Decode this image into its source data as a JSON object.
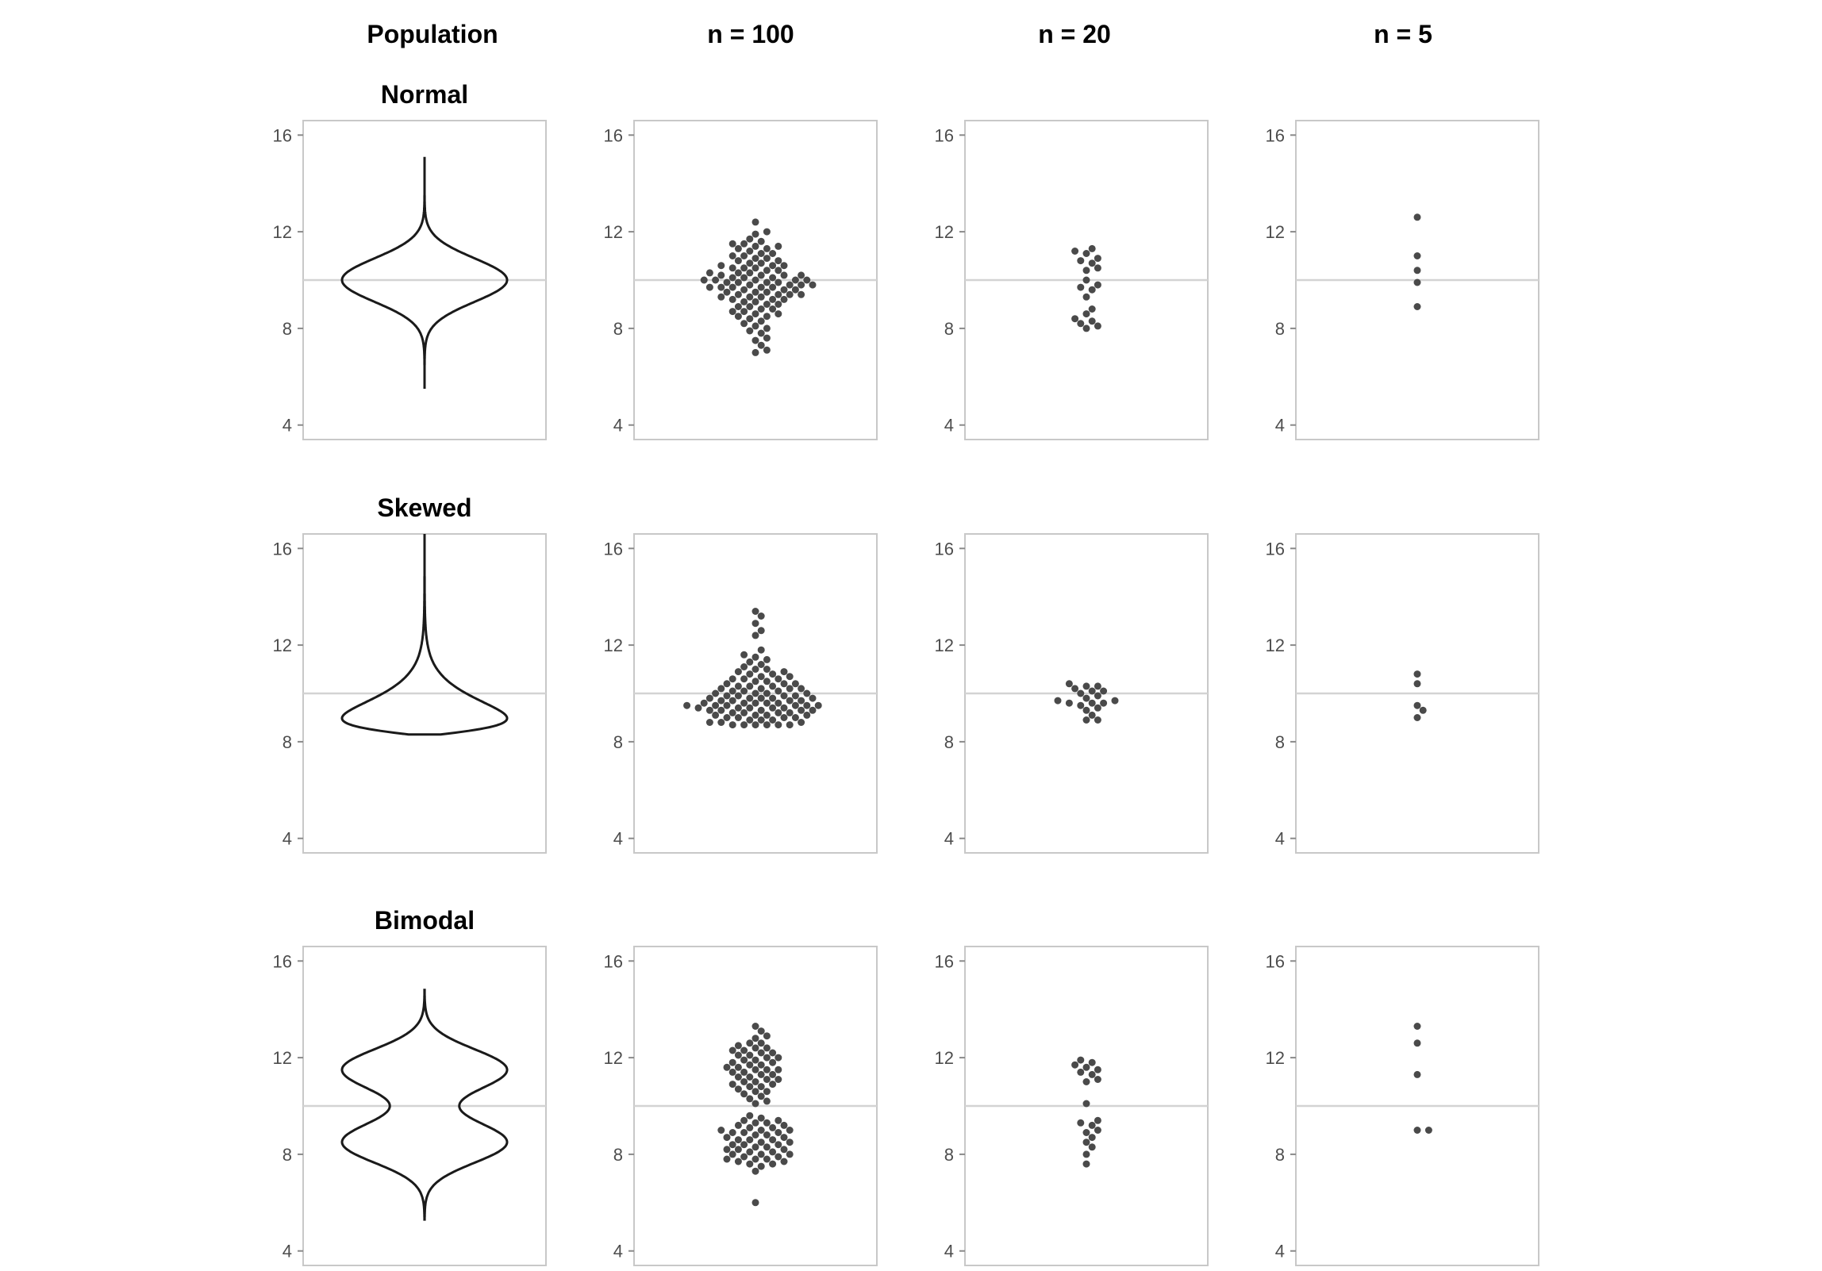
{
  "chart_data": {
    "type": "scatter",
    "column_titles": [
      "Population",
      "n = 100",
      "n = 20",
      "n = 5"
    ],
    "row_titles": [
      "Normal",
      "Skewed",
      "Bimodal"
    ],
    "y_ticks": [
      4,
      8,
      12,
      16
    ],
    "ylim": [
      3.4,
      16.6
    ],
    "reference_line": 10,
    "grid": false,
    "panels": [
      {
        "distribution": "Normal",
        "population": {
          "shape": "violin",
          "mode": "normal",
          "center": 10,
          "sd": 0.9,
          "min": 5.5,
          "max": 15.1
        },
        "samples": {
          "n = 100": [
            12.4,
            12.0,
            11.9,
            11.7,
            11.6,
            11.5,
            11.5,
            11.4,
            11.4,
            11.3,
            11.3,
            11.2,
            11.1,
            11.1,
            11.0,
            11.0,
            10.9,
            10.9,
            10.8,
            10.8,
            10.7,
            10.7,
            10.6,
            10.6,
            10.5,
            10.5,
            10.5,
            10.4,
            10.4,
            10.3,
            10.3,
            10.3,
            10.2,
            10.2,
            10.2,
            10.1,
            10.1,
            10.1,
            10.0,
            10.0,
            10.0,
            10.0,
            9.9,
            9.9,
            9.9,
            9.9,
            9.8,
            9.8,
            9.8,
            9.8,
            9.7,
            9.7,
            9.7,
            9.7,
            9.6,
            9.6,
            9.6,
            9.5,
            9.5,
            9.5,
            9.4,
            9.4,
            9.4,
            9.3,
            9.3,
            9.3,
            9.2,
            9.2,
            9.2,
            9.1,
            9.1,
            9.0,
            9.0,
            8.9,
            8.9,
            8.8,
            8.8,
            8.7,
            8.7,
            8.6,
            8.6,
            8.5,
            8.5,
            8.4,
            8.3,
            8.2,
            8.1,
            8.0,
            7.9,
            7.8,
            7.6,
            7.5,
            7.3,
            7.1,
            7.0,
            10.6,
            9.7,
            10.2,
            9.4,
            10.0
          ],
          "n = 20": [
            11.3,
            11.2,
            11.1,
            10.9,
            10.8,
            10.7,
            10.5,
            10.4,
            10.0,
            9.8,
            9.7,
            9.6,
            9.3,
            8.8,
            8.6,
            8.4,
            8.3,
            8.2,
            8.1,
            8.0
          ],
          "n = 5": [
            12.6,
            11.0,
            10.4,
            9.9,
            8.9
          ]
        }
      },
      {
        "distribution": "Skewed",
        "population": {
          "shape": "violin",
          "mode": "skewed",
          "min": 8.3,
          "max": 16.6
        },
        "samples": {
          "n = 100": [
            13.4,
            13.2,
            12.9,
            12.6,
            12.4,
            11.8,
            11.6,
            11.5,
            11.4,
            11.3,
            11.2,
            11.1,
            11.0,
            10.9,
            10.8,
            10.8,
            10.7,
            10.7,
            10.6,
            10.6,
            10.5,
            10.5,
            10.4,
            10.4,
            10.4,
            10.3,
            10.3,
            10.3,
            10.2,
            10.2,
            10.2,
            10.1,
            10.1,
            10.1,
            10.0,
            10.0,
            10.0,
            10.0,
            9.9,
            9.9,
            9.9,
            9.9,
            9.8,
            9.8,
            9.8,
            9.8,
            9.7,
            9.7,
            9.7,
            9.7,
            9.6,
            9.6,
            9.6,
            9.6,
            9.5,
            9.5,
            9.5,
            9.5,
            9.5,
            9.4,
            9.4,
            9.4,
            9.4,
            9.4,
            9.3,
            9.3,
            9.3,
            9.3,
            9.2,
            9.2,
            9.2,
            9.2,
            9.1,
            9.1,
            9.1,
            9.0,
            9.0,
            9.0,
            8.9,
            8.9,
            8.9,
            8.8,
            8.8,
            8.8,
            8.7,
            8.7,
            8.7,
            8.7,
            8.7,
            8.7,
            10.9,
            11.0,
            10.6,
            10.2,
            9.6,
            9.3,
            9.1,
            9.8,
            9.5,
            9.0
          ],
          "n = 20": [
            10.4,
            10.3,
            10.3,
            10.2,
            10.1,
            10.1,
            10.0,
            9.9,
            9.8,
            9.7,
            9.7,
            9.6,
            9.6,
            9.6,
            9.5,
            9.4,
            9.3,
            9.1,
            8.9,
            8.9
          ],
          "n = 5": [
            10.8,
            10.4,
            9.5,
            9.3,
            9.0
          ]
        }
      },
      {
        "distribution": "Bimodal",
        "population": {
          "shape": "violin",
          "mode": "bimodal",
          "center": 10,
          "modes": [
            8.5,
            11.5
          ],
          "min": 5.3,
          "max": 14.8
        },
        "samples": {
          "n = 100": [
            13.3,
            13.1,
            12.9,
            12.8,
            12.6,
            12.5,
            12.4,
            12.3,
            12.2,
            12.1,
            12.0,
            11.9,
            11.8,
            11.7,
            11.6,
            11.5,
            11.4,
            11.3,
            11.2,
            11.1,
            11.0,
            10.9,
            10.8,
            10.7,
            10.6,
            10.5,
            10.4,
            10.3,
            10.2,
            10.1,
            12.3,
            11.9,
            11.5,
            11.1,
            12.0,
            11.6,
            11.3,
            10.9,
            11.8,
            11.4,
            12.6,
            11.0,
            11.7,
            12.2,
            10.6,
            11.2,
            12.4,
            11.5,
            10.8,
            12.1,
            9.6,
            9.5,
            9.4,
            9.3,
            9.2,
            9.1,
            9.0,
            8.9,
            8.8,
            8.7,
            8.6,
            8.5,
            8.4,
            8.3,
            8.2,
            8.1,
            8.0,
            7.9,
            7.8,
            7.7,
            7.6,
            7.5,
            7.3,
            6.0,
            9.0,
            8.6,
            8.2,
            7.8,
            9.3,
            8.9,
            8.5,
            8.1,
            7.7,
            9.1,
            8.7,
            8.3,
            7.9,
            8.8,
            8.4,
            8.0,
            9.4,
            7.6,
            8.6,
            9.2,
            8.0,
            8.4,
            8.9,
            7.8,
            8.2,
            9.0
          ],
          "n = 20": [
            11.9,
            11.8,
            11.7,
            11.6,
            11.5,
            11.4,
            11.3,
            11.1,
            11.0,
            10.1,
            9.4,
            9.3,
            9.2,
            9.0,
            8.9,
            8.7,
            8.5,
            8.3,
            8.0,
            7.6
          ],
          "n = 5": [
            13.3,
            12.6,
            11.3,
            9.0,
            9.0
          ]
        }
      }
    ]
  }
}
